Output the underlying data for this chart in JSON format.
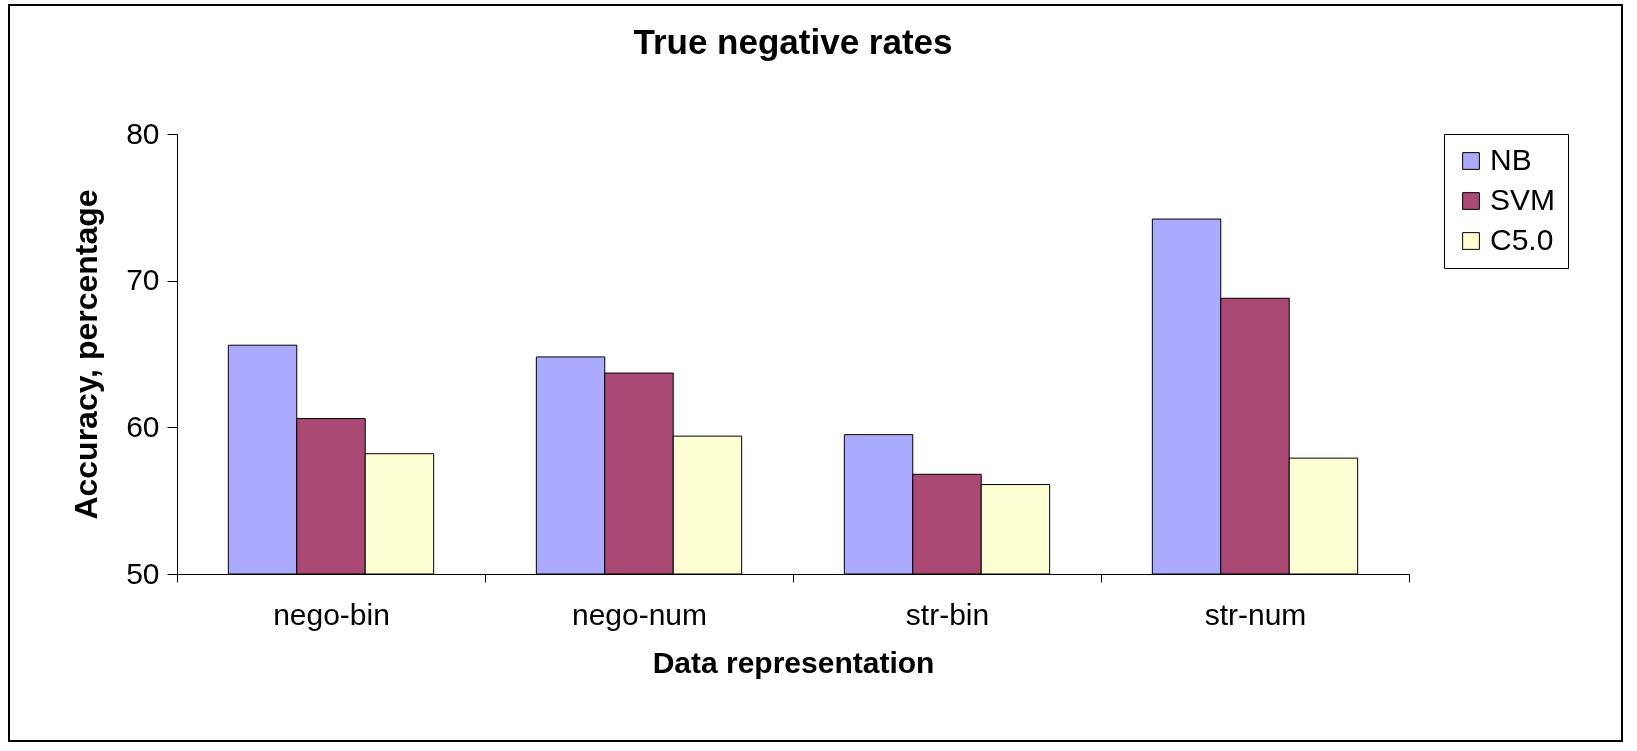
{
  "chart_data": {
    "type": "bar",
    "title": "True negative rates",
    "xlabel": "Data representation",
    "ylabel": "Accuracy, percentage",
    "categories": [
      "nego-bin",
      "nego-num",
      "str-bin",
      "str-num"
    ],
    "series": [
      {
        "name": "NB",
        "color": "#aaaaff",
        "values": [
          65.6,
          64.8,
          59.5,
          74.2
        ]
      },
      {
        "name": "SVM",
        "color": "#a94974",
        "values": [
          60.6,
          63.7,
          56.8,
          68.8
        ]
      },
      {
        "name": "C5.0",
        "color": "#ffffd4",
        "values": [
          58.2,
          59.4,
          56.1,
          57.9
        ]
      }
    ],
    "ylim": [
      50,
      80
    ],
    "yticks": [
      50,
      60,
      70,
      80
    ],
    "grid": false,
    "legend": "right"
  }
}
